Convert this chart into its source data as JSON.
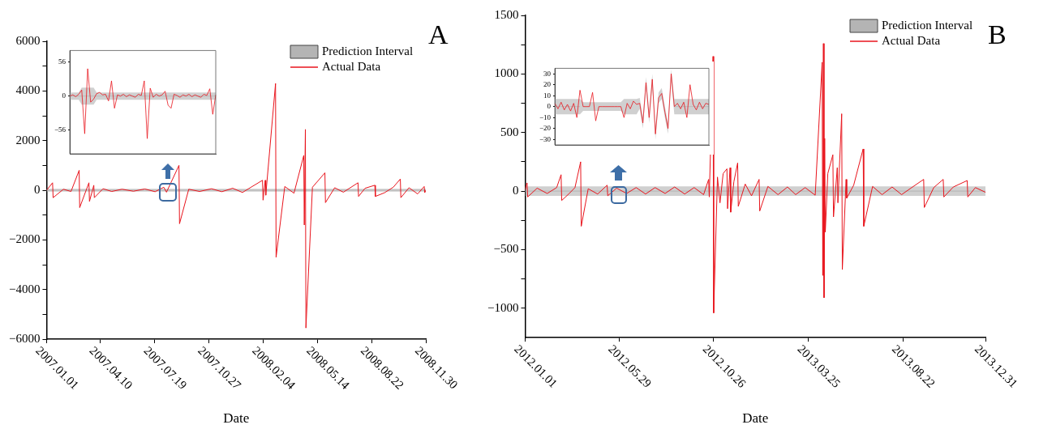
{
  "chart_data": [
    {
      "type": "line",
      "title": "A",
      "xlabel": "Date",
      "legend": "top right",
      "xlim": [
        "2007-01-01",
        "2008-11-30"
      ],
      "xticks": [
        {
          "value": "2007-01-01",
          "label": "2007.01.01"
        },
        {
          "value": "2007-04-10",
          "label": "2007.04.10"
        },
        {
          "value": "2007-07-19",
          "label": "2007.07.19"
        },
        {
          "value": "2007-10-27",
          "label": "2007.10.27"
        },
        {
          "value": "2008-02-04",
          "label": "2008.02.04"
        },
        {
          "value": "2008-05-14",
          "label": "2008.05.14"
        },
        {
          "value": "2008-08-22",
          "label": "2008.08.22"
        },
        {
          "value": "2008-11-30",
          "label": "2008.11.30"
        }
      ],
      "ylim": [
        -6000,
        6000
      ],
      "yticks": [
        -6000,
        {
          "value": -5000,
          "label": null
        },
        -4000,
        {
          "value": -3000,
          "label": null
        },
        -2000,
        {
          "value": -1000,
          "label": null
        },
        0,
        {
          "value": 1000,
          "label": null
        },
        2000,
        {
          "value": 3000,
          "label": null
        },
        4000,
        {
          "value": 5000,
          "label": null
        },
        6000
      ],
      "series": [
        {
          "type": "line",
          "name": "Prediction Interval",
          "color": "#b4b4b4",
          "x": [
            "2007-01-01",
            "2007-07-01",
            "2008-01-01",
            "2008-11-30"
          ],
          "values": [
            0,
            0,
            0,
            0
          ],
          "lower": [
            -60,
            -60,
            -60,
            -60
          ],
          "upper": [
            60,
            60,
            60,
            60
          ]
        },
        {
          "type": "line",
          "name": "Actual Data",
          "color": "#e8141c",
          "x": [
            "2007-01-01",
            "2007-01-12",
            "2007-01-13",
            "2007-02-01",
            "2007-02-15",
            "2007-03-02",
            "2007-03-03",
            "2007-03-20",
            "2007-03-21",
            "2007-03-29",
            "2007-03-30",
            "2007-04-15",
            "2007-05-01",
            "2007-05-20",
            "2007-06-10",
            "2007-07-01",
            "2007-07-20",
            "2007-08-05",
            "2007-08-10",
            "2007-09-02",
            "2007-09-03",
            "2007-09-20",
            "2007-10-10",
            "2007-11-01",
            "2007-11-20",
            "2007-12-10",
            "2007-12-28",
            "2008-01-15",
            "2008-02-03",
            "2008-02-04",
            "2008-02-08",
            "2008-02-09",
            "2008-02-27",
            "2008-02-28",
            "2008-03-15",
            "2008-04-01",
            "2008-04-19",
            "2008-04-20",
            "2008-04-22",
            "2008-04-23",
            "2008-05-05",
            "2008-05-28",
            "2008-05-29",
            "2008-06-15",
            "2008-07-01",
            "2008-07-28",
            "2008-07-29",
            "2008-08-10",
            "2008-08-28",
            "2008-08-29",
            "2008-09-15",
            "2008-10-01",
            "2008-10-14",
            "2008-10-15",
            "2008-10-30",
            "2008-11-15",
            "2008-11-27",
            "2008-11-28",
            "2008-11-30"
          ],
          "values": [
            0,
            300,
            -300,
            40,
            -50,
            800,
            -700,
            300,
            -450,
            200,
            -300,
            60,
            -50,
            40,
            -40,
            50,
            -60,
            120,
            -80,
            1000,
            -1350,
            40,
            -50,
            60,
            -60,
            80,
            -90,
            150,
            400,
            -400,
            400,
            -200,
            4300,
            -2700,
            150,
            -120,
            1400,
            -1400,
            2450,
            -5550,
            120,
            700,
            -500,
            100,
            -80,
            300,
            -250,
            80,
            200,
            -250,
            -100,
            120,
            450,
            -300,
            100,
            -150,
            150,
            -100,
            0
          ]
        }
      ]
    },
    {
      "type": "line",
      "tick_labels": "y",
      "categories": [
        null,
        null,
        null,
        null,
        null,
        null,
        null,
        null,
        null,
        null,
        null,
        null,
        null,
        null,
        null,
        null,
        null,
        null,
        null,
        null,
        null,
        null,
        null,
        null,
        null,
        null,
        null,
        null,
        null,
        null,
        null,
        null,
        null,
        null,
        null,
        null,
        null,
        null,
        null,
        null,
        null,
        null,
        null,
        null,
        null,
        null,
        null,
        null,
        null,
        null
      ],
      "ylim": [
        -95,
        75
      ],
      "yticks": [
        -56,
        0,
        56
      ],
      "series": [
        {
          "type": "line",
          "color": "#b4b4b4",
          "values": [
            0,
            0,
            0,
            0,
            0,
            0,
            0,
            0,
            0,
            0,
            0,
            0,
            0,
            0,
            0,
            0,
            0,
            0,
            0,
            0,
            0,
            0,
            0,
            0,
            0,
            0,
            0,
            0,
            0,
            0,
            0,
            0,
            0,
            0,
            0,
            0,
            0,
            0,
            0,
            0,
            0,
            0,
            0,
            0,
            0,
            0,
            0,
            0,
            0,
            0
          ],
          "lower": [
            -6,
            -6,
            -6,
            -6,
            -14,
            -14,
            -14,
            -14,
            -14,
            -6,
            -6,
            -6,
            -6,
            -6,
            -6,
            -6,
            -6,
            -6,
            -6,
            -6,
            -6,
            -6,
            -6,
            -6,
            -6,
            -6,
            -6,
            -6,
            -6,
            -6,
            -6,
            -6,
            -6,
            -6,
            -6,
            -6,
            -6,
            -6,
            -6,
            -6,
            -6,
            -6,
            -6,
            -6,
            -6,
            -6,
            -6,
            -6,
            -6,
            -6
          ],
          "upper": [
            6,
            6,
            6,
            6,
            14,
            14,
            14,
            14,
            14,
            6,
            6,
            6,
            6,
            6,
            6,
            6,
            6,
            6,
            6,
            6,
            6,
            6,
            6,
            6,
            6,
            6,
            6,
            6,
            6,
            6,
            6,
            6,
            6,
            6,
            6,
            6,
            6,
            6,
            6,
            6,
            6,
            6,
            6,
            6,
            6,
            6,
            6,
            6,
            6,
            6
          ]
        },
        {
          "type": "line",
          "color": "#e8141c",
          "values": [
            0,
            2,
            -1,
            3,
            10,
            -62,
            45,
            -10,
            -5,
            4,
            6,
            2,
            3,
            -8,
            25,
            -20,
            2,
            0,
            3,
            -1,
            2,
            0,
            -2,
            3,
            1,
            25,
            -70,
            13,
            -2,
            3,
            0,
            2,
            8,
            -15,
            -20,
            3,
            1,
            -2,
            2,
            0,
            3,
            -1,
            2,
            0,
            -2,
            3,
            1,
            12,
            -30,
            2
          ]
        }
      ]
    },
    {
      "type": "line",
      "title": "B",
      "xlabel": "Date",
      "legend": "top right",
      "xlim": [
        "2012-01-01",
        "2013-12-31"
      ],
      "xticks": [
        {
          "value": "2012-01-01",
          "label": "2012.01.01"
        },
        {
          "value": "2012-05-29",
          "label": "2012.05.29"
        },
        {
          "value": "2012-10-26",
          "label": "2012.10.26"
        },
        {
          "value": "2013-03-25",
          "label": "2013.03.25"
        },
        {
          "value": "2013-08-22",
          "label": "2013.08.22"
        },
        {
          "value": "2013-12-31",
          "label": "2013.12.31"
        }
      ],
      "ylim": [
        -1250,
        1500
      ],
      "yticks": [
        -1000,
        {
          "value": -750,
          "label": null
        },
        -500,
        {
          "value": -250,
          "label": null
        },
        0,
        {
          "value": 250,
          "label": null
        },
        500,
        {
          "value": 750,
          "label": null
        },
        1000,
        {
          "value": 1250,
          "label": null
        },
        1500
      ],
      "series": [
        {
          "type": "line",
          "name": "Prediction Interval",
          "color": "#b4b4b4",
          "x": [
            "2012-01-01",
            "2012-10-01",
            "2013-04-01",
            "2013-12-31"
          ],
          "values": [
            0,
            0,
            0,
            0
          ],
          "lower": [
            -40,
            -40,
            -40,
            -40
          ],
          "upper": [
            40,
            40,
            40,
            40
          ]
        },
        {
          "type": "line",
          "name": "Actual Data",
          "color": "#e8141c",
          "x": [
            "2012-01-01",
            "2012-01-04",
            "2012-01-05",
            "2012-01-20",
            "2012-02-05",
            "2012-02-20",
            "2012-02-27",
            "2012-02-28",
            "2012-03-10",
            "2012-03-20",
            "2012-03-29",
            "2012-03-30",
            "2012-04-10",
            "2012-04-25",
            "2012-05-10",
            "2012-05-11",
            "2012-05-25",
            "2012-06-10",
            "2012-06-25",
            "2012-07-10",
            "2012-07-25",
            "2012-08-10",
            "2012-08-25",
            "2012-09-10",
            "2012-09-25",
            "2012-10-10",
            "2012-10-18",
            "2012-10-19",
            "2012-10-25",
            "2012-10-26",
            "2012-11-01",
            "2012-11-05",
            "2012-11-10",
            "2012-11-16",
            "2012-11-17",
            "2012-11-21",
            "2012-11-22",
            "2012-11-27",
            "2012-12-03",
            "2012-12-04",
            "2012-12-15",
            "2012-12-25",
            "2013-01-06",
            "2013-01-07",
            "2013-01-20",
            "2013-02-05",
            "2013-02-20",
            "2013-03-05",
            "2013-03-20",
            "2013-04-05",
            "2013-04-16",
            "2013-04-17",
            "2013-04-18",
            "2013-04-19",
            "2013-04-20",
            "2013-04-21",
            "2013-04-25",
            "2013-05-03",
            "2013-05-04",
            "2013-05-10",
            "2013-05-11",
            "2013-05-17",
            "2013-05-18",
            "2013-05-24",
            "2013-05-25",
            "2013-06-05",
            "2013-06-20",
            "2013-06-21",
            "2013-07-05",
            "2013-07-20",
            "2013-08-05",
            "2013-08-20",
            "2013-09-05",
            "2013-09-24",
            "2013-09-25",
            "2013-10-10",
            "2013-10-25",
            "2013-10-26",
            "2013-11-10",
            "2013-12-02",
            "2013-12-03",
            "2013-12-15",
            "2013-12-31"
          ],
          "values": [
            10,
            70,
            -50,
            25,
            -20,
            30,
            140,
            -80,
            -25,
            30,
            250,
            -300,
            20,
            -25,
            50,
            -40,
            25,
            -20,
            30,
            -25,
            30,
            -20,
            35,
            -25,
            30,
            -30,
            100,
            -50,
            1150,
            -1040,
            120,
            -100,
            150,
            190,
            -150,
            200,
            -180,
            80,
            240,
            -130,
            60,
            -40,
            100,
            -170,
            40,
            -30,
            35,
            -30,
            30,
            -35,
            1100,
            -720,
            1260,
            -910,
            450,
            -350,
            150,
            310,
            -220,
            200,
            -100,
            660,
            -670,
            100,
            -60,
            50,
            360,
            -300,
            40,
            -30,
            35,
            -30,
            30,
            100,
            -140,
            30,
            100,
            -50,
            35,
            90,
            -50,
            30,
            -10
          ]
        }
      ]
    },
    {
      "type": "line",
      "tick_labels": "y",
      "categories": [
        null,
        null,
        null,
        null,
        null,
        null,
        null,
        null,
        null,
        null,
        null,
        null,
        null,
        null,
        null,
        null,
        null,
        null,
        null,
        null,
        null,
        null,
        null,
        null,
        null,
        null,
        null,
        null,
        null,
        null,
        null,
        null,
        null,
        null,
        null,
        null,
        null,
        null,
        null,
        null,
        null,
        null,
        null,
        null,
        null,
        null,
        null,
        null,
        null,
        null
      ],
      "ylim": [
        -35,
        35
      ],
      "yticks": [
        -30,
        -20,
        -10,
        0,
        10,
        20,
        30
      ],
      "series": [
        {
          "type": "line",
          "color": "#b4b4b4",
          "values": [
            0,
            0,
            0,
            0,
            0,
            0,
            0,
            0,
            0,
            null,
            null,
            null,
            null,
            null,
            null,
            null,
            null,
            null,
            null,
            null,
            null,
            null,
            null,
            null,
            null,
            null,
            null,
            null,
            null,
            null,
            null,
            null,
            null,
            null,
            null,
            null,
            null,
            null,
            0,
            0,
            0,
            0,
            0,
            0,
            0,
            0,
            0,
            0,
            0,
            0
          ],
          "lower": [
            -7,
            -7,
            -7,
            -7,
            -7,
            -7,
            -7,
            -7,
            -7,
            -4,
            -4,
            -4,
            -4,
            -4,
            -4,
            -4,
            -4,
            -4,
            -4,
            -4,
            -4,
            -4,
            -7,
            -7,
            -7,
            -7,
            -7,
            -2,
            -20,
            17,
            -15,
            20,
            -30,
            3,
            7,
            -10,
            -25,
            25,
            -7,
            -7,
            -7,
            -7,
            -7,
            -7,
            -7,
            -7,
            -7,
            -7,
            -7,
            -7
          ],
          "upper": [
            7,
            7,
            7,
            7,
            7,
            7,
            7,
            7,
            7,
            4,
            4,
            4,
            4,
            4,
            4,
            4,
            4,
            4,
            4,
            4,
            4,
            4,
            7,
            7,
            7,
            7,
            7,
            8,
            -10,
            27,
            -5,
            30,
            -20,
            13,
            17,
            0,
            -15,
            34,
            7,
            7,
            7,
            7,
            7,
            7,
            7,
            7,
            7,
            7,
            7,
            7
          ]
        },
        {
          "type": "line",
          "color": "#e8141c",
          "values": [
            3,
            -2,
            4,
            -3,
            2,
            -4,
            3,
            -10,
            15,
            0,
            0,
            0,
            13,
            -13,
            0,
            0,
            0,
            0,
            0,
            0,
            0,
            0,
            -10,
            3,
            -2,
            5,
            2,
            3,
            -15,
            22,
            -10,
            25,
            -25,
            8,
            12,
            -5,
            -20,
            30,
            0,
            3,
            -2,
            4,
            -10,
            20,
            2,
            -3,
            4,
            -2,
            3,
            2
          ]
        }
      ]
    }
  ]
}
